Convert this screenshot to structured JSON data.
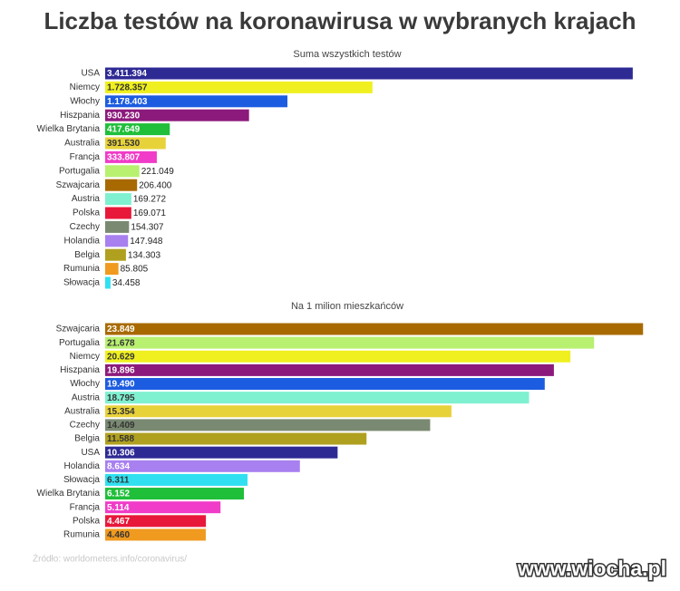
{
  "title": "Liczba testów na koronawirusa w wybranych krajach",
  "source": "Źródło: worldometers.info/coronavirus/",
  "watermark": "www.wiocha.pl",
  "chart_data": [
    {
      "type": "bar",
      "orientation": "horizontal",
      "subtitle": "Suma wszystkich testów",
      "categories": [
        "USA",
        "Niemcy",
        "Włochy",
        "Hiszpania",
        "Wielka Brytania",
        "Australia",
        "Francja",
        "Portugalia",
        "Szwajcaria",
        "Austria",
        "Polska",
        "Czechy",
        "Holandia",
        "Belgia",
        "Rumunia",
        "Słowacja"
      ],
      "values": [
        3411394,
        1728357,
        1178403,
        930230,
        417649,
        391530,
        333807,
        221049,
        206400,
        169272,
        169071,
        154307,
        147948,
        134303,
        85805,
        34458
      ],
      "value_labels": [
        "3.411.394",
        "1.728.357",
        "1.178.403",
        "930.230",
        "417.649",
        "391.530",
        "333.807",
        "221.049",
        "206.400",
        "169.272",
        "169.071",
        "154.307",
        "147.948",
        "134.303",
        "85.805",
        "34.458"
      ],
      "colors": [
        "#2e2a94",
        "#f0f020",
        "#1c5ce0",
        "#8c1a7c",
        "#1fbf3a",
        "#e8d23a",
        "#f03cc8",
        "#b8f070",
        "#a86a00",
        "#7ff0d0",
        "#e8183a",
        "#7a8a72",
        "#a880f0",
        "#b0a020",
        "#f09a20",
        "#30e0f0"
      ],
      "label_colors": [
        "#ffffff",
        "#333333",
        "#ffffff",
        "#ffffff",
        "#ffffff",
        "#333333",
        "#ffffff",
        "#222222",
        "#222222",
        "#222222",
        "#222222",
        "#222222",
        "#222222",
        "#222222",
        "#222222",
        "#222222"
      ],
      "xlim": [
        0,
        3500000
      ]
    },
    {
      "type": "bar",
      "orientation": "horizontal",
      "subtitle": "Na 1 milion mieszkańców",
      "categories": [
        "Szwajcaria",
        "Portugalia",
        "Niemcy",
        "Hiszpania",
        "Włochy",
        "Austria",
        "Australia",
        "Czechy",
        "Belgia",
        "USA",
        "Holandia",
        "Słowacja",
        "Wielka Brytania",
        "Francja",
        "Polska",
        "Rumunia"
      ],
      "values": [
        23849,
        21678,
        20629,
        19896,
        19490,
        18795,
        15354,
        14409,
        11588,
        10306,
        8634,
        6311,
        6152,
        5114,
        4467,
        4460
      ],
      "value_labels": [
        "23.849",
        "21.678",
        "20.629",
        "19.896",
        "19.490",
        "18.795",
        "15.354",
        "14.409",
        "11.588",
        "10.306",
        "8.634",
        "6.311",
        "6.152",
        "5.114",
        "4.467",
        "4.460"
      ],
      "colors": [
        "#a86a00",
        "#b8f070",
        "#f0f020",
        "#8c1a7c",
        "#1c5ce0",
        "#7ff0d0",
        "#e8d23a",
        "#7a8a72",
        "#b0a020",
        "#2e2a94",
        "#a880f0",
        "#30e0f0",
        "#1fbf3a",
        "#f03cc8",
        "#e8183a",
        "#f09a20"
      ],
      "label_colors": [
        "#ffffff",
        "#333333",
        "#333333",
        "#ffffff",
        "#ffffff",
        "#333333",
        "#333333",
        "#333333",
        "#333333",
        "#ffffff",
        "#ffffff",
        "#333333",
        "#ffffff",
        "#ffffff",
        "#ffffff",
        "#333333"
      ],
      "xlim": [
        0,
        24000
      ]
    }
  ]
}
